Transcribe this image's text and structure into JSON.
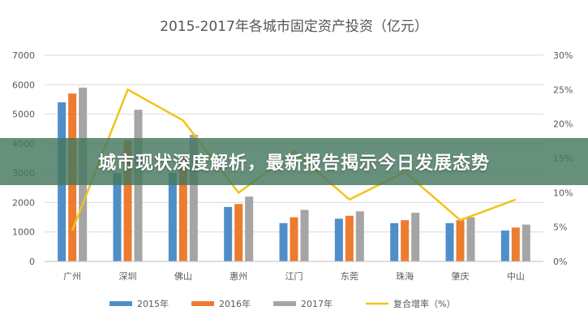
{
  "chart_data": {
    "type": "bar",
    "title": "2015-2017年各城市固定资产投资（亿元）",
    "categories": [
      "广州",
      "深圳",
      "佛山",
      "惠州",
      "江门",
      "东莞",
      "珠海",
      "肇庆",
      "中山"
    ],
    "series": [
      {
        "name": "2015年",
        "color": "#4f8fc9",
        "values": [
          5400,
          3000,
          3000,
          1850,
          1300,
          1450,
          1300,
          1300,
          1050
        ]
      },
      {
        "name": "2016年",
        "color": "#ec7c30",
        "values": [
          5700,
          4100,
          3600,
          1950,
          1500,
          1550,
          1400,
          1400,
          1150
        ]
      },
      {
        "name": "2017年",
        "color": "#a5a5a5",
        "values": [
          5900,
          5150,
          4300,
          2200,
          1750,
          1700,
          1650,
          1500,
          1250
        ]
      },
      {
        "name": "复合增率（%）",
        "color": "#f0c419",
        "type": "line",
        "axis": "right",
        "values": [
          4.5,
          25,
          20.5,
          10,
          16,
          9,
          13,
          6,
          9
        ]
      }
    ],
    "ylim": [
      0,
      7000
    ],
    "yticks": [
      "0",
      "1000",
      "2000",
      "3000",
      "4000",
      "5000",
      "6000",
      "7000"
    ],
    "y2lim": [
      0,
      30
    ],
    "y2ticks": [
      "0%",
      "5%",
      "10%",
      "15%",
      "20%",
      "25%",
      "30%"
    ],
    "grid": true,
    "legend": "bottom"
  },
  "banner": {
    "text": "城市现状深度解析，最新报告揭示今日发展态势"
  }
}
